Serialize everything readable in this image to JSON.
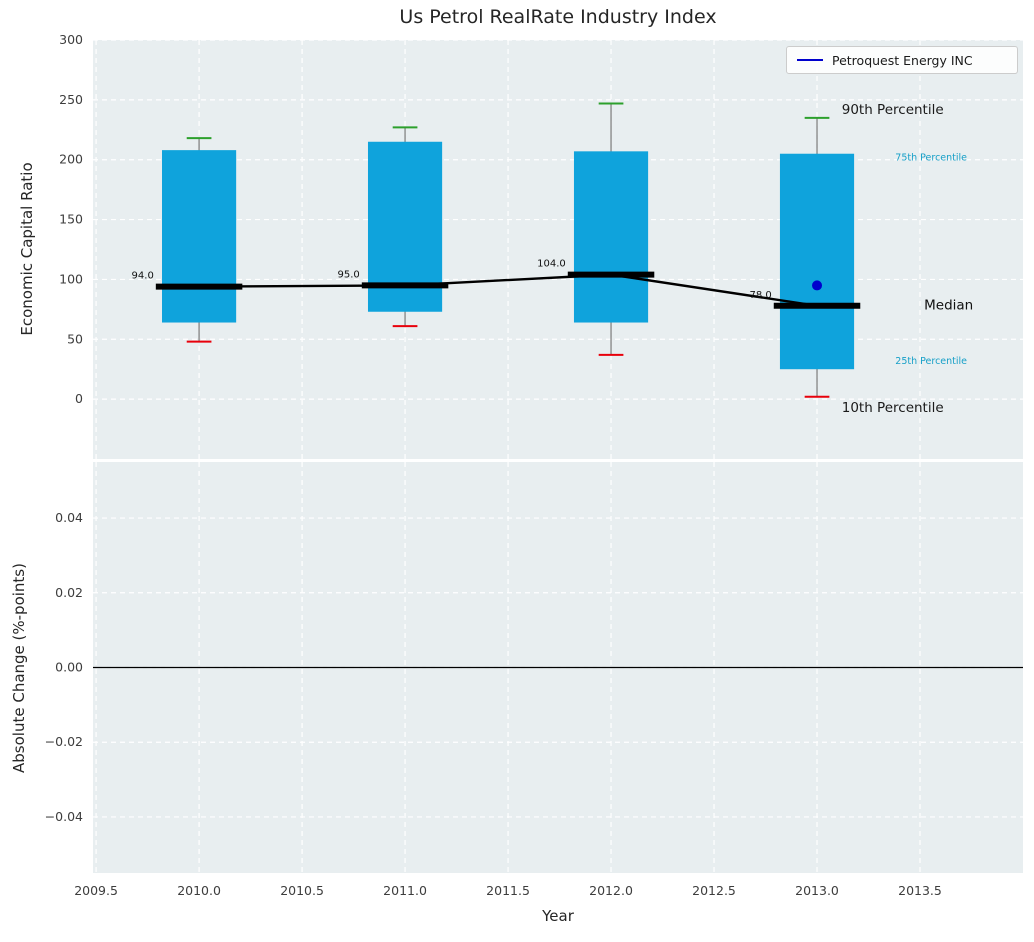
{
  "title": "Us Petrol RealRate Industry Index",
  "legend": {
    "label": "Petroquest Energy INC"
  },
  "axes": {
    "xlabel": "Year",
    "xlim": [
      2009.485,
      2014.0
    ],
    "xticks": {
      "values": [
        2009.5,
        2010.0,
        2010.5,
        2011.0,
        2011.5,
        2012.0,
        2012.5,
        2013.0,
        2013.5
      ],
      "labels": [
        "2009.5",
        "2010.0",
        "2010.5",
        "2011.0",
        "2011.5",
        "2012.0",
        "2012.5",
        "2013.0",
        "2013.5"
      ]
    },
    "top": {
      "ylabel": "Economic Capital Ratio",
      "ylim": [
        -50,
        300
      ],
      "yticks": {
        "values": [
          0,
          50,
          100,
          150,
          200,
          250,
          300
        ],
        "labels": [
          "0",
          "50",
          "100",
          "150",
          "200",
          "250",
          "300"
        ]
      },
      "grid": true
    },
    "bottom": {
      "ylabel": "Absolute Change (%-points)",
      "ylim": [
        -0.055,
        0.055
      ],
      "yticks": {
        "values": [
          -0.04,
          -0.02,
          0.0,
          0.02,
          0.04
        ],
        "labels": [
          "−0.04",
          "−0.02",
          "0.00",
          "0.02",
          "0.04"
        ]
      },
      "grid": true,
      "zero_line": 0.0
    }
  },
  "chart_data": {
    "type": "boxplot",
    "title": "Us Petrol RealRate Industry Index",
    "xlabel": "Year",
    "ylabel_top": "Economic Capital Ratio",
    "ylabel_bottom": "Absolute Change (%-points)",
    "years": [
      2010,
      2011,
      2012,
      2013
    ],
    "series": [
      {
        "name": "10th Percentile",
        "values": [
          48,
          61,
          37,
          2
        ]
      },
      {
        "name": "25th Percentile",
        "values": [
          64,
          73,
          64,
          25
        ]
      },
      {
        "name": "Median",
        "values": [
          94.0,
          95.0,
          104.0,
          78.0
        ]
      },
      {
        "name": "75th Percentile",
        "values": [
          208,
          215,
          207,
          205
        ]
      },
      {
        "name": "90th Percentile",
        "values": [
          218,
          227,
          247,
          235
        ]
      }
    ],
    "median_labels": [
      "94.0",
      "95.0",
      "104.0",
      "78.0"
    ],
    "company_series": {
      "name": "Petroquest Energy INC",
      "points": [
        {
          "x": 2013,
          "y": 95
        }
      ]
    },
    "annotations": [
      {
        "text": "90th Percentile",
        "x": 2013.12,
        "y": 242,
        "color": "#1a1a1a",
        "size": 13.5
      },
      {
        "text": "75th Percentile",
        "x": 2013.38,
        "y": 202,
        "color": "#17a0c8",
        "size": 9.5
      },
      {
        "text": "Median",
        "x": 2013.52,
        "y": 79,
        "color": "#111111",
        "size": 13.5
      },
      {
        "text": "25th Percentile",
        "x": 2013.38,
        "y": 32,
        "color": "#17a0c8",
        "size": 9.5
      },
      {
        "text": "10th Percentile",
        "x": 2013.12,
        "y": -7,
        "color": "#1a1a1a",
        "size": 13.5
      }
    ],
    "legend_position": "upper right",
    "grid": "white dashed on light background",
    "bottom_panel_visible_data": "none (only zero line shown)"
  },
  "colors": {
    "box_fill": "#0fa3dc",
    "whisker": "#7a7a7a",
    "cap_top": "#2ca02c",
    "cap_bottom": "#e8000b",
    "median_line": "#000000",
    "company": "#0000cd",
    "plot_bg": "#e8eef0",
    "grid": "#ffffff",
    "zero_line": "#000000",
    "tick_label": "#3d3d3d"
  }
}
